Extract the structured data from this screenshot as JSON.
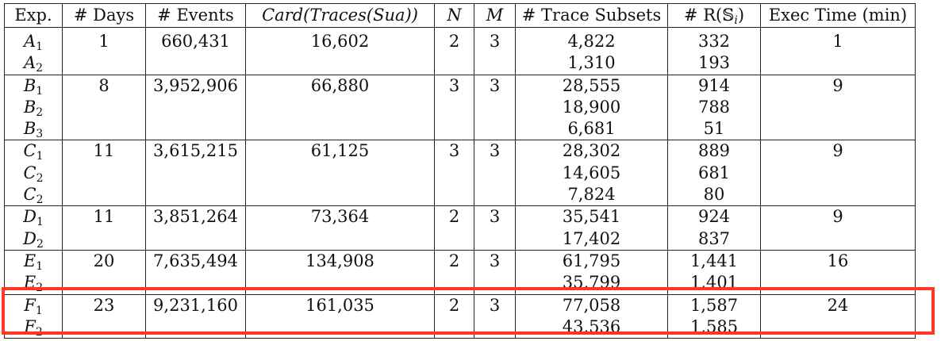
{
  "headers": {
    "exp": "Exp.",
    "days": "# Days",
    "events": "# Events",
    "card": "Card(Traces(Sua))",
    "n": "N",
    "m": "M",
    "subsets": "# Trace Subsets",
    "r": "# R(𝕊",
    "r_sub": "i",
    "r_close": ")",
    "time": "Exec Time (min)"
  },
  "groups": [
    {
      "days": "1",
      "events": "660,431",
      "card": "16,602",
      "n": "2",
      "m": "3",
      "time": "1",
      "rows": [
        {
          "letter": "A",
          "sub": "1",
          "subsets": "4,822",
          "r": "332"
        },
        {
          "letter": "A",
          "sub": "2",
          "subsets": "1,310",
          "r": "193"
        }
      ]
    },
    {
      "days": "8",
      "events": "3,952,906",
      "card": "66,880",
      "n": "3",
      "m": "3",
      "time": "9",
      "rows": [
        {
          "letter": "B",
          "sub": "1",
          "subsets": "28,555",
          "r": "914"
        },
        {
          "letter": "B",
          "sub": "2",
          "subsets": "18,900",
          "r": "788"
        },
        {
          "letter": "B",
          "sub": "3",
          "subsets": "6,681",
          "r": "51"
        }
      ]
    },
    {
      "days": "11",
      "events": "3,615,215",
      "card": "61,125",
      "n": "3",
      "m": "3",
      "time": "9",
      "rows": [
        {
          "letter": "C",
          "sub": "1",
          "subsets": "28,302",
          "r": "889"
        },
        {
          "letter": "C",
          "sub": "2",
          "subsets": "14,605",
          "r": "681"
        },
        {
          "letter": "C",
          "sub": "2",
          "subsets": "7,824",
          "r": "80"
        }
      ]
    },
    {
      "days": "11",
      "events": "3,851,264",
      "card": "73,364",
      "n": "2",
      "m": "3",
      "time": "9",
      "rows": [
        {
          "letter": "D",
          "sub": "1",
          "subsets": "35,541",
          "r": "924"
        },
        {
          "letter": "D",
          "sub": "2",
          "subsets": "17,402",
          "r": "837"
        }
      ]
    },
    {
      "days": "20",
      "events": "7,635,494",
      "card": "134,908",
      "n": "2",
      "m": "3",
      "time": "16",
      "rows": [
        {
          "letter": "E",
          "sub": "1",
          "subsets": "61,795",
          "r": "1,441"
        },
        {
          "letter": "E",
          "sub": "2",
          "subsets": "35,799",
          "r": "1,401"
        }
      ]
    },
    {
      "days": "23",
      "events": "9,231,160",
      "card": "161,035",
      "n": "2",
      "m": "3",
      "time": "24",
      "rows": [
        {
          "letter": "F",
          "sub": "1",
          "subsets": "77,058",
          "r": "1,587"
        },
        {
          "letter": "F",
          "sub": "2",
          "subsets": "43,536",
          "r": "1,585"
        }
      ]
    }
  ],
  "highlight": {
    "color": "#ff3b1f",
    "group_index": 5
  }
}
